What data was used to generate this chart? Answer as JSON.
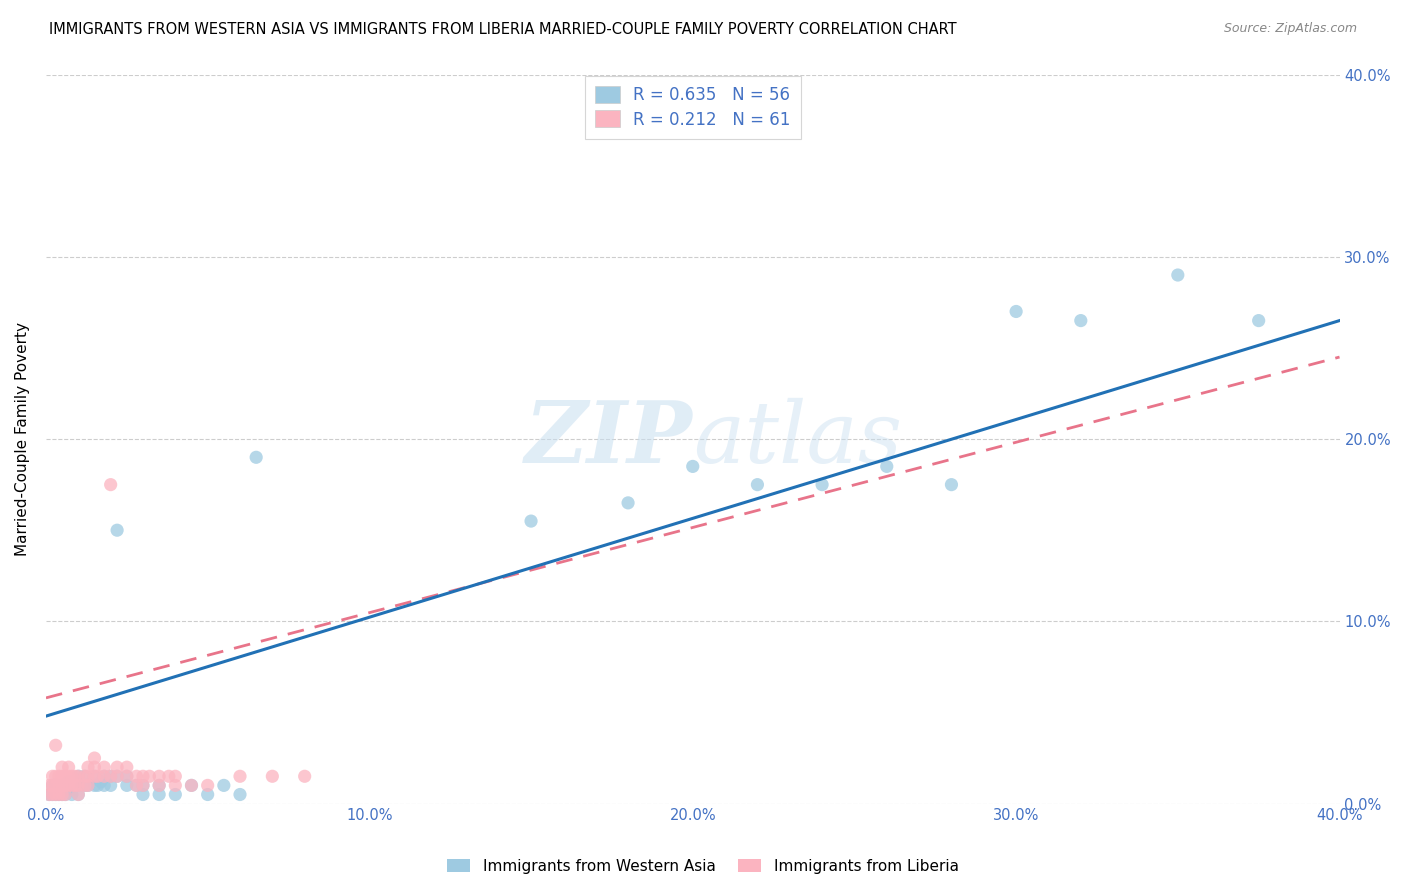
{
  "title": "IMMIGRANTS FROM WESTERN ASIA VS IMMIGRANTS FROM LIBERIA MARRIED-COUPLE FAMILY POVERTY CORRELATION CHART",
  "source": "Source: ZipAtlas.com",
  "ylabel": "Married-Couple Family Poverty",
  "legend_label1": "Immigrants from Western Asia",
  "legend_label2": "Immigrants from Liberia",
  "R1": 0.635,
  "N1": 56,
  "R2": 0.212,
  "N2": 61,
  "color1": "#9ecae1",
  "color2": "#fbb4c0",
  "line1_color": "#2171b5",
  "line2_color": "#e8748a",
  "xlim": [
    0.0,
    0.4
  ],
  "ylim": [
    0.0,
    0.4
  ],
  "blue_points": [
    [
      0.001,
      0.005
    ],
    [
      0.002,
      0.005
    ],
    [
      0.002,
      0.01
    ],
    [
      0.003,
      0.005
    ],
    [
      0.003,
      0.01
    ],
    [
      0.004,
      0.005
    ],
    [
      0.004,
      0.008
    ],
    [
      0.005,
      0.005
    ],
    [
      0.005,
      0.01
    ],
    [
      0.006,
      0.005
    ],
    [
      0.006,
      0.01
    ],
    [
      0.007,
      0.008
    ],
    [
      0.007,
      0.012
    ],
    [
      0.008,
      0.005
    ],
    [
      0.008,
      0.01
    ],
    [
      0.009,
      0.01
    ],
    [
      0.01,
      0.005
    ],
    [
      0.01,
      0.01
    ],
    [
      0.01,
      0.015
    ],
    [
      0.012,
      0.01
    ],
    [
      0.012,
      0.015
    ],
    [
      0.013,
      0.01
    ],
    [
      0.015,
      0.01
    ],
    [
      0.015,
      0.015
    ],
    [
      0.016,
      0.01
    ],
    [
      0.017,
      0.012
    ],
    [
      0.018,
      0.01
    ],
    [
      0.018,
      0.015
    ],
    [
      0.02,
      0.01
    ],
    [
      0.02,
      0.015
    ],
    [
      0.022,
      0.015
    ],
    [
      0.022,
      0.15
    ],
    [
      0.025,
      0.01
    ],
    [
      0.025,
      0.015
    ],
    [
      0.028,
      0.01
    ],
    [
      0.03,
      0.005
    ],
    [
      0.03,
      0.01
    ],
    [
      0.035,
      0.005
    ],
    [
      0.035,
      0.01
    ],
    [
      0.04,
      0.005
    ],
    [
      0.045,
      0.01
    ],
    [
      0.05,
      0.005
    ],
    [
      0.055,
      0.01
    ],
    [
      0.06,
      0.005
    ],
    [
      0.065,
      0.19
    ],
    [
      0.15,
      0.155
    ],
    [
      0.18,
      0.165
    ],
    [
      0.2,
      0.185
    ],
    [
      0.22,
      0.175
    ],
    [
      0.24,
      0.175
    ],
    [
      0.26,
      0.185
    ],
    [
      0.28,
      0.175
    ],
    [
      0.3,
      0.27
    ],
    [
      0.32,
      0.265
    ],
    [
      0.35,
      0.29
    ],
    [
      0.375,
      0.265
    ]
  ],
  "pink_points": [
    [
      0.001,
      0.005
    ],
    [
      0.001,
      0.01
    ],
    [
      0.002,
      0.005
    ],
    [
      0.002,
      0.01
    ],
    [
      0.002,
      0.015
    ],
    [
      0.003,
      0.005
    ],
    [
      0.003,
      0.01
    ],
    [
      0.003,
      0.015
    ],
    [
      0.003,
      0.032
    ],
    [
      0.004,
      0.005
    ],
    [
      0.004,
      0.01
    ],
    [
      0.004,
      0.015
    ],
    [
      0.005,
      0.005
    ],
    [
      0.005,
      0.01
    ],
    [
      0.005,
      0.015
    ],
    [
      0.005,
      0.02
    ],
    [
      0.006,
      0.005
    ],
    [
      0.006,
      0.01
    ],
    [
      0.006,
      0.015
    ],
    [
      0.007,
      0.01
    ],
    [
      0.007,
      0.015
    ],
    [
      0.007,
      0.02
    ],
    [
      0.008,
      0.01
    ],
    [
      0.008,
      0.015
    ],
    [
      0.009,
      0.01
    ],
    [
      0.009,
      0.015
    ],
    [
      0.01,
      0.005
    ],
    [
      0.01,
      0.01
    ],
    [
      0.01,
      0.015
    ],
    [
      0.012,
      0.01
    ],
    [
      0.012,
      0.015
    ],
    [
      0.013,
      0.01
    ],
    [
      0.013,
      0.015
    ],
    [
      0.013,
      0.02
    ],
    [
      0.015,
      0.015
    ],
    [
      0.015,
      0.02
    ],
    [
      0.015,
      0.025
    ],
    [
      0.016,
      0.015
    ],
    [
      0.018,
      0.015
    ],
    [
      0.018,
      0.02
    ],
    [
      0.02,
      0.015
    ],
    [
      0.02,
      0.175
    ],
    [
      0.022,
      0.015
    ],
    [
      0.022,
      0.02
    ],
    [
      0.025,
      0.015
    ],
    [
      0.025,
      0.02
    ],
    [
      0.028,
      0.01
    ],
    [
      0.028,
      0.015
    ],
    [
      0.03,
      0.01
    ],
    [
      0.03,
      0.015
    ],
    [
      0.032,
      0.015
    ],
    [
      0.035,
      0.01
    ],
    [
      0.035,
      0.015
    ],
    [
      0.038,
      0.015
    ],
    [
      0.04,
      0.01
    ],
    [
      0.04,
      0.015
    ],
    [
      0.045,
      0.01
    ],
    [
      0.05,
      0.01
    ],
    [
      0.06,
      0.015
    ],
    [
      0.07,
      0.015
    ],
    [
      0.08,
      0.015
    ]
  ],
  "background_color": "#ffffff",
  "grid_color": "#c8c8c8"
}
